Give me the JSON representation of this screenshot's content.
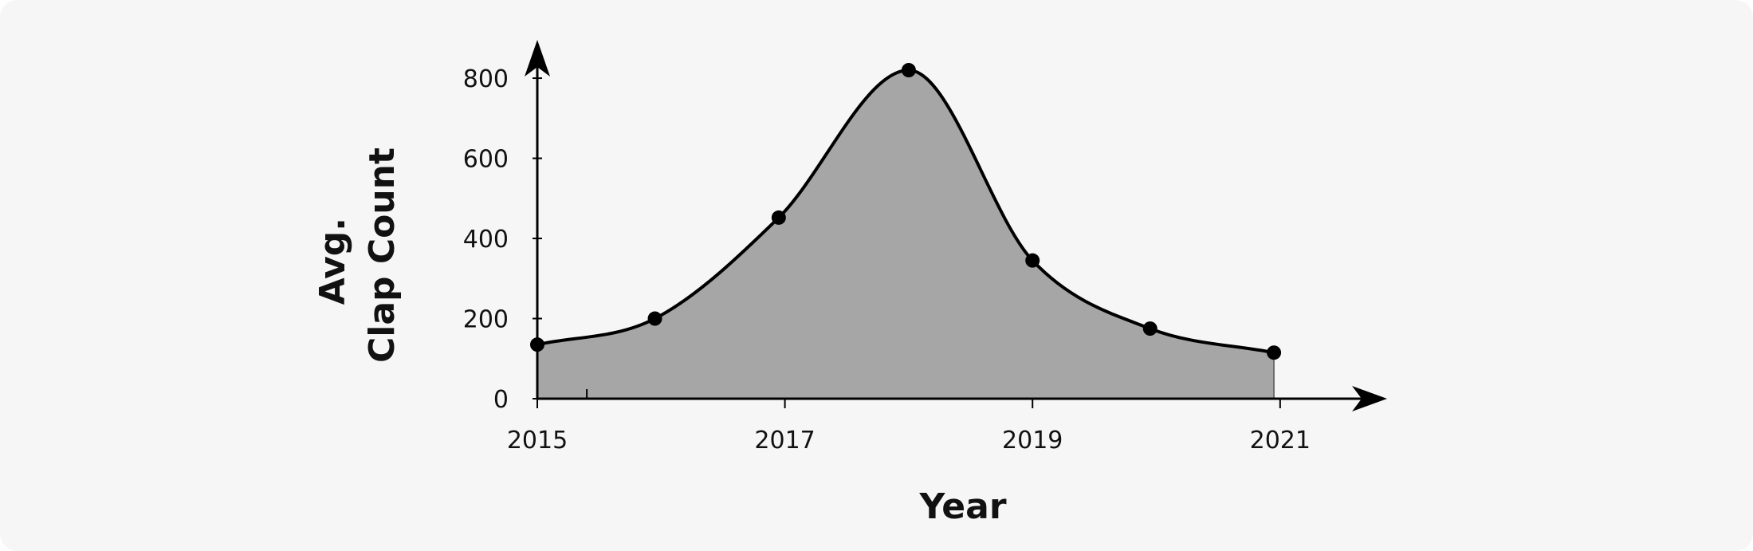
{
  "chart_data": {
    "type": "area",
    "title": "",
    "xlabel": "Year",
    "ylabel": [
      "Avg.",
      "Clap Count"
    ],
    "x": [
      2015.0,
      2015.95,
      2016.95,
      2018.0,
      2019.0,
      2019.95,
      2020.95
    ],
    "series": [
      {
        "values": [
          135,
          200,
          452,
          820,
          345,
          175,
          115
        ]
      }
    ],
    "xlim": [
      2015,
      2021.6
    ],
    "ylim": [
      0,
      820
    ],
    "xticks": [
      2015,
      2017,
      2019,
      2021
    ],
    "xtick_labels": [
      "2015",
      "2017",
      "2019",
      "2021"
    ],
    "yticks": [
      0,
      200,
      400,
      600,
      800
    ],
    "ytick_labels": [
      "0",
      "200",
      "400",
      "600",
      "800"
    ],
    "grid": false,
    "legend": "none",
    "colors": {
      "fill": "#a6a6a6",
      "line": "#000000",
      "marker": "#000000",
      "axis": "#000000",
      "background": "#f6f6f6"
    }
  }
}
